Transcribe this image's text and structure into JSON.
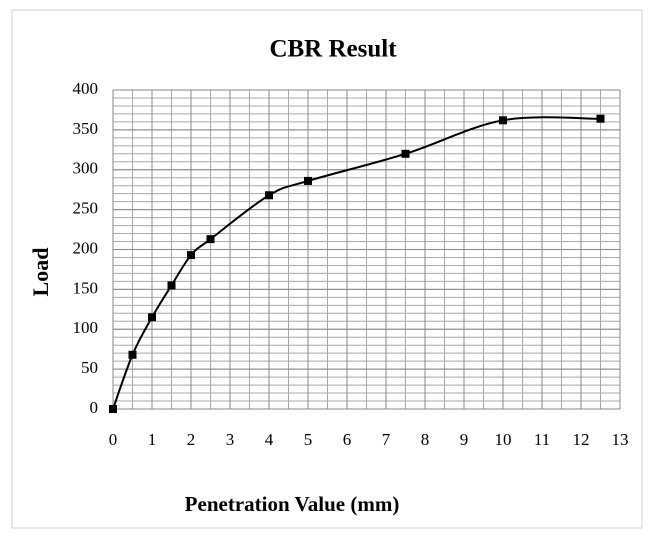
{
  "chart_data": {
    "type": "line",
    "title": "CBR Result",
    "xlabel": "Penetration Value (mm)",
    "ylabel": "Load",
    "x": [
      0,
      0.5,
      1,
      1.5,
      2,
      2.5,
      4,
      5,
      7.5,
      10,
      12.5
    ],
    "series": [
      {
        "name": "Load",
        "color": "#000000",
        "values": [
          0,
          68,
          115,
          155,
          193,
          213,
          268,
          286,
          320,
          362,
          364
        ]
      }
    ],
    "xlim": [
      0,
      13
    ],
    "xticks": [
      0,
      1,
      2,
      3,
      4,
      5,
      6,
      7,
      8,
      9,
      10,
      11,
      12,
      13
    ],
    "ylim": [
      0,
      400
    ],
    "yticks": [
      0,
      50,
      100,
      150,
      200,
      250,
      300,
      350,
      400
    ],
    "grid": true
  }
}
